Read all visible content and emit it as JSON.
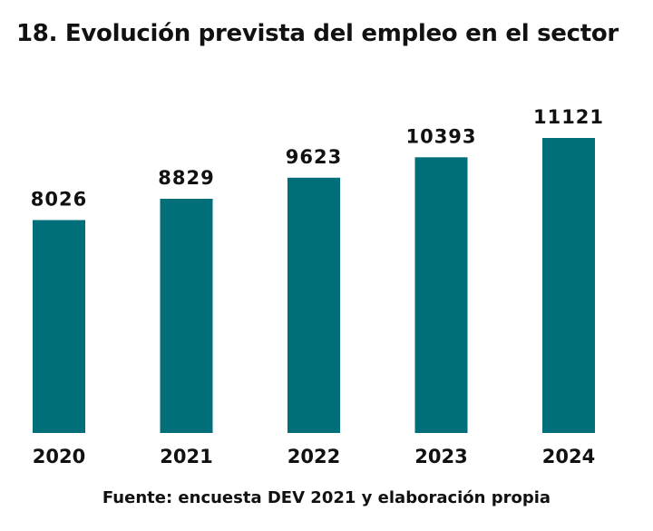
{
  "chart_data": {
    "type": "bar",
    "title": "18. Evolución prevista del empleo en el sector",
    "categories": [
      "2020",
      "2021",
      "2022",
      "2023",
      "2024"
    ],
    "values": [
      8026,
      8829,
      9623,
      10393,
      11121
    ],
    "value_labels": [
      "8026",
      "8829",
      "9623",
      "10393",
      "11121"
    ],
    "xlabel": "",
    "ylabel": "",
    "ylim": [
      0,
      11121
    ],
    "grid": false,
    "legend": "none",
    "bar_color": "#006f7a",
    "source": "Fuente: encuesta DEV 2021 y elaboración propia"
  }
}
